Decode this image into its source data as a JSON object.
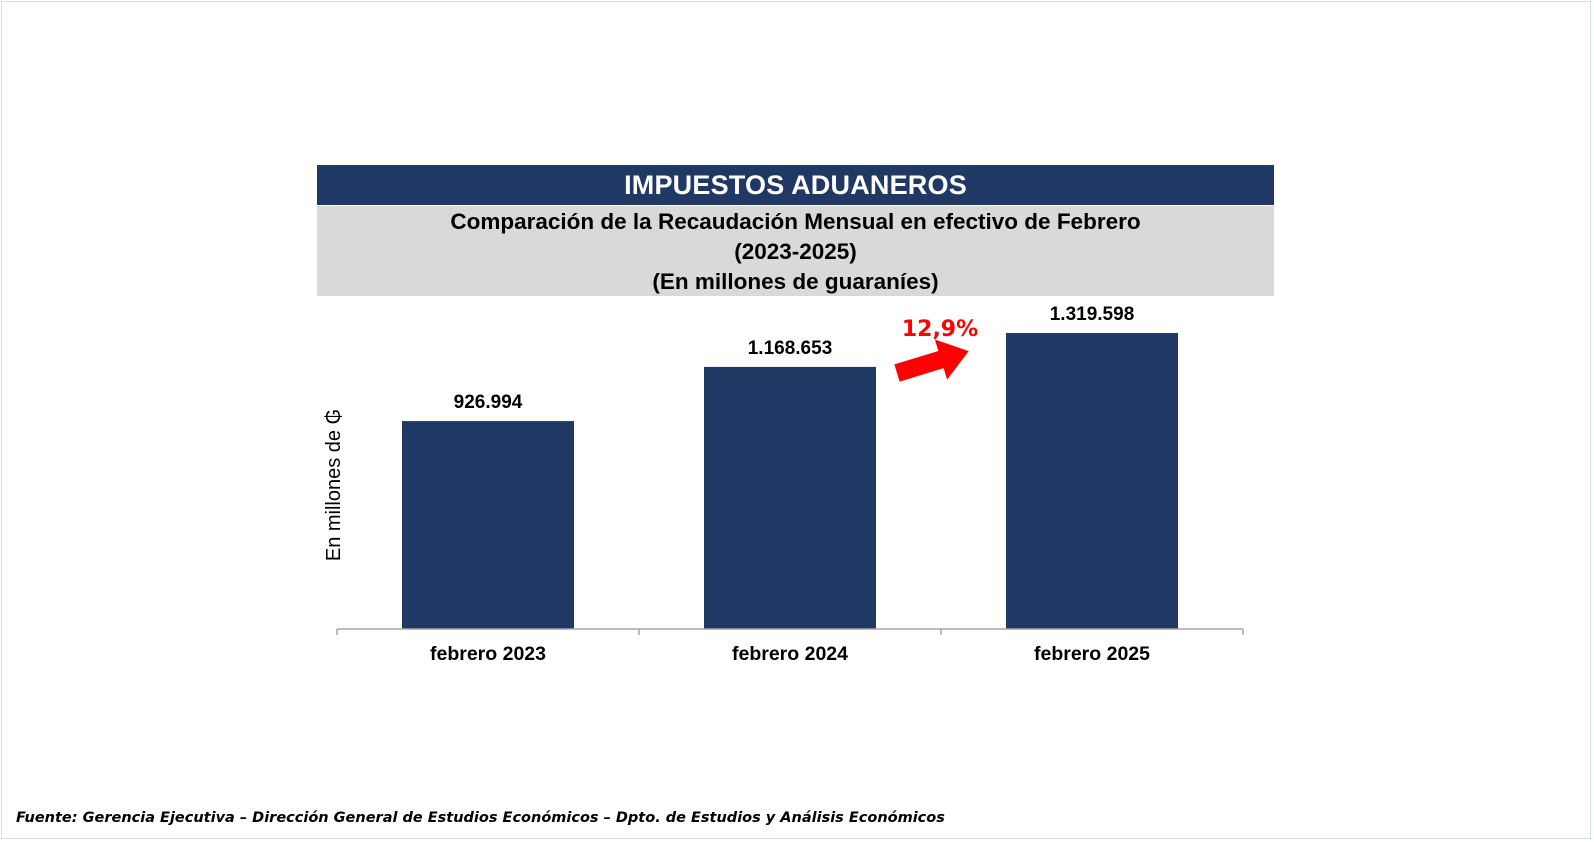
{
  "header": {
    "title": "IMPUESTOS ADUANEROS",
    "subtitle_line1": "Comparación de la Recaudación Mensual en efectivo de Febrero",
    "subtitle_line2": "(2023-2025)",
    "subtitle_line3": "(En millones de guaraníes)"
  },
  "chart_data": {
    "type": "bar",
    "categories": [
      "febrero 2023",
      "febrero 2024",
      "febrero 2025"
    ],
    "values": [
      926994,
      1168653,
      1319598
    ],
    "value_labels": [
      "926.994",
      "1.168.653",
      "1.319.598"
    ],
    "ylabel": "En millones de ₲",
    "ylim": [
      0,
      1400000
    ],
    "grid": false,
    "legend": "none",
    "annotation": {
      "text": "12,9%",
      "from_category": "febrero 2024",
      "to_category": "febrero 2025"
    },
    "colors": {
      "bar": "#203864",
      "annotation": "#ff0000",
      "axis": "#a6a6a6"
    }
  },
  "footer": {
    "source": "Fuente: Gerencia Ejecutiva – Dirección General de Estudios Económicos – Dpto. de Estudios y Análisis Económicos"
  }
}
